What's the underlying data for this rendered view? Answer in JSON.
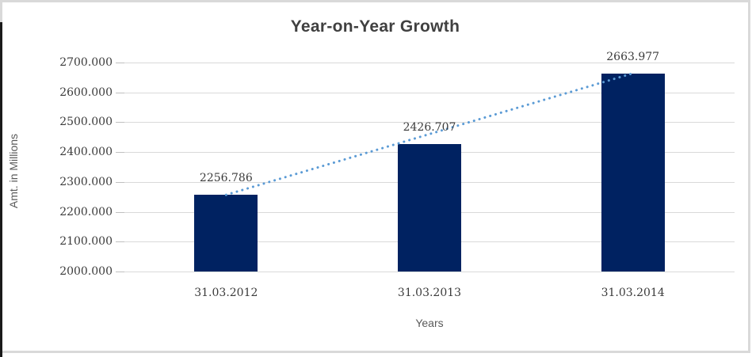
{
  "chart_data": {
    "type": "bar",
    "title": "Year-on-Year Growth",
    "categories": [
      "31.03.2012",
      "31.03.2013",
      "31.03.2014"
    ],
    "values": [
      2256.786,
      2426.707,
      2663.977
    ],
    "data_labels": [
      "2256.786",
      "2426.707",
      "2663.977"
    ],
    "xlabel": "Years",
    "ylabel": "Amt. in Millions",
    "ylim": [
      2000,
      2700
    ],
    "ytick_step": 100,
    "ytick_labels": [
      "2700.000",
      "2600.000",
      "2500.000",
      "2400.000",
      "2300.000",
      "2200.000",
      "2100.000",
      "2000.000"
    ],
    "grid": true,
    "legend": false,
    "trendline": {
      "type": "linear",
      "style": "dotted",
      "from_category": "31.03.2012",
      "to_category": "31.03.2014"
    },
    "colors": {
      "bar": "#002261",
      "trendline": "#5b9bd5",
      "gridline": "#d9d9d9",
      "tick_mark": "#bfbfbf",
      "title_text": "#404040",
      "axis_title_text": "#595959",
      "number_text": "#3b3b3b",
      "frame_border": "#d9d9d9",
      "left_edge_line": "#1a1a1a",
      "background": "#ffffff"
    }
  }
}
